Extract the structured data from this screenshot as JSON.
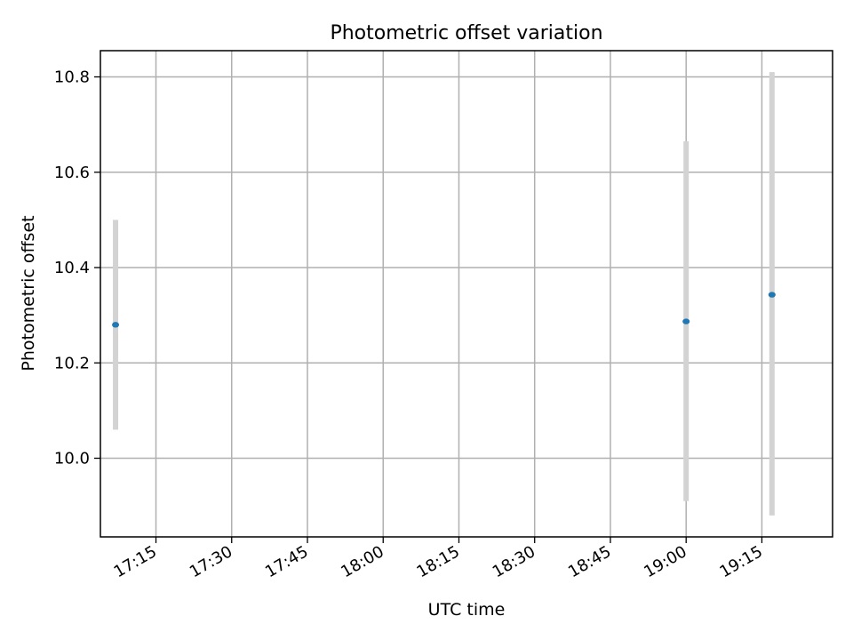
{
  "chart_data": {
    "type": "scatter",
    "title": "Photometric offset variation",
    "xlabel": "UTC time",
    "ylabel": "Photometric offset",
    "grid": true,
    "xlim": [
      "17:04",
      "19:29"
    ],
    "ylim": [
      9.835,
      10.855
    ],
    "xticks": [
      "17:15",
      "17:30",
      "17:45",
      "18:00",
      "18:15",
      "18:30",
      "18:45",
      "19:00",
      "19:15"
    ],
    "yticks": [
      "10.0",
      "10.2",
      "10.4",
      "10.6",
      "10.8"
    ],
    "series": [
      {
        "marker_color": "#1f77b4",
        "errorbar_color": "#d3d3d3",
        "points": [
          {
            "x": "17:07",
            "y": 10.28,
            "yerr_low": 10.06,
            "yerr_high": 10.5
          },
          {
            "x": "19:00",
            "y": 10.287,
            "yerr_low": 9.91,
            "yerr_high": 10.665
          },
          {
            "x": "19:17",
            "y": 10.343,
            "yerr_low": 9.88,
            "yerr_high": 10.81
          }
        ]
      }
    ]
  }
}
